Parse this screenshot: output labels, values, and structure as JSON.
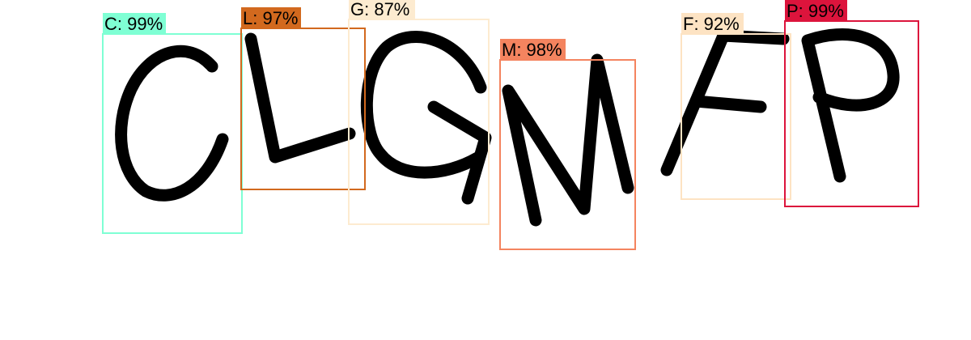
{
  "image": {
    "description": "",
    "detections": [
      {
        "label": "C: 99%",
        "color": "#7fffd4"
      },
      {
        "label": "L: 97%",
        "color": "#d2691e"
      },
      {
        "label": "G: 87%",
        "color": "#fdebd0"
      },
      {
        "label": "M: 98%",
        "color": "#f4845f"
      },
      {
        "label": "F: 92%",
        "color": "#fde3c3"
      },
      {
        "label": "P: 99%",
        "color": "#dc143c"
      }
    ]
  }
}
